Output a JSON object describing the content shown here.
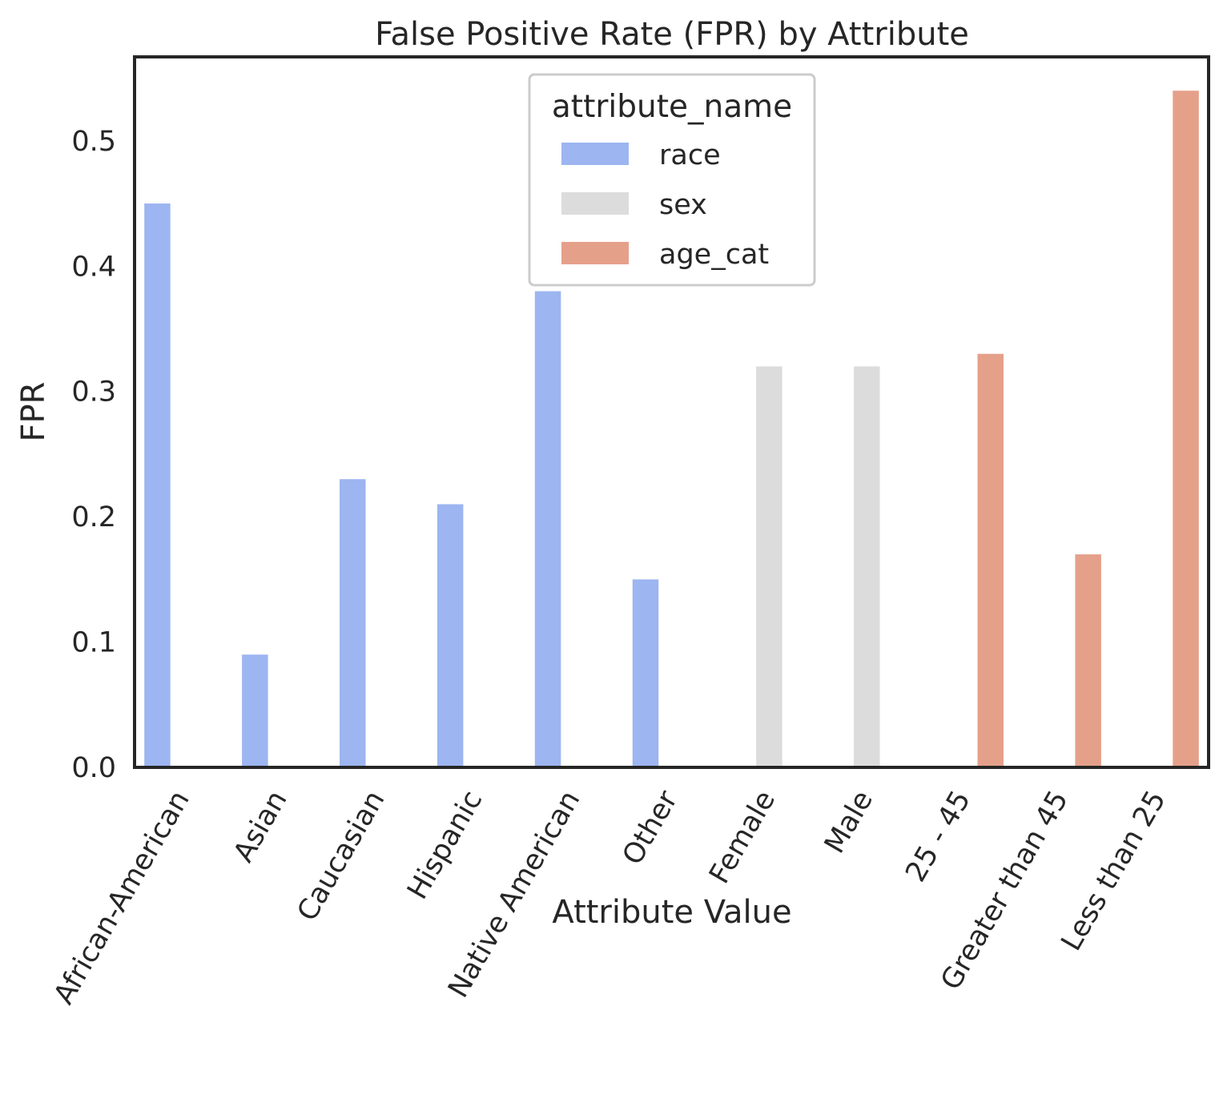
{
  "chart_data": {
    "type": "bar",
    "title": "False Positive Rate (FPR) by Attribute",
    "xlabel": "Attribute Value",
    "ylabel": "FPR",
    "ylim": [
      0,
      0.567
    ],
    "yticks": [
      0.0,
      0.1,
      0.2,
      0.3,
      0.4,
      0.5
    ],
    "ytick_labels": [
      "0.0",
      "0.1",
      "0.2",
      "0.3",
      "0.4",
      "0.5"
    ],
    "grid": false,
    "legend": {
      "title": "attribute_name",
      "placement": "upper center"
    },
    "categories": [
      "African-American",
      "Asian",
      "Caucasian",
      "Hispanic",
      "Native American",
      "Other",
      "Female",
      "Male",
      "25 - 45",
      "Greater than 45",
      "Less than 25"
    ],
    "series": [
      {
        "name": "race",
        "color": "#9db5f0",
        "values": [
          0.45,
          0.09,
          0.23,
          0.21,
          0.38,
          0.15,
          null,
          null,
          null,
          null,
          null
        ]
      },
      {
        "name": "sex",
        "color": "#dcdcdc",
        "values": [
          null,
          null,
          null,
          null,
          null,
          null,
          0.32,
          0.32,
          null,
          null,
          null
        ]
      },
      {
        "name": "age_cat",
        "color": "#e5a08a",
        "values": [
          null,
          null,
          null,
          null,
          null,
          null,
          null,
          null,
          0.33,
          0.17,
          0.54
        ]
      }
    ]
  }
}
